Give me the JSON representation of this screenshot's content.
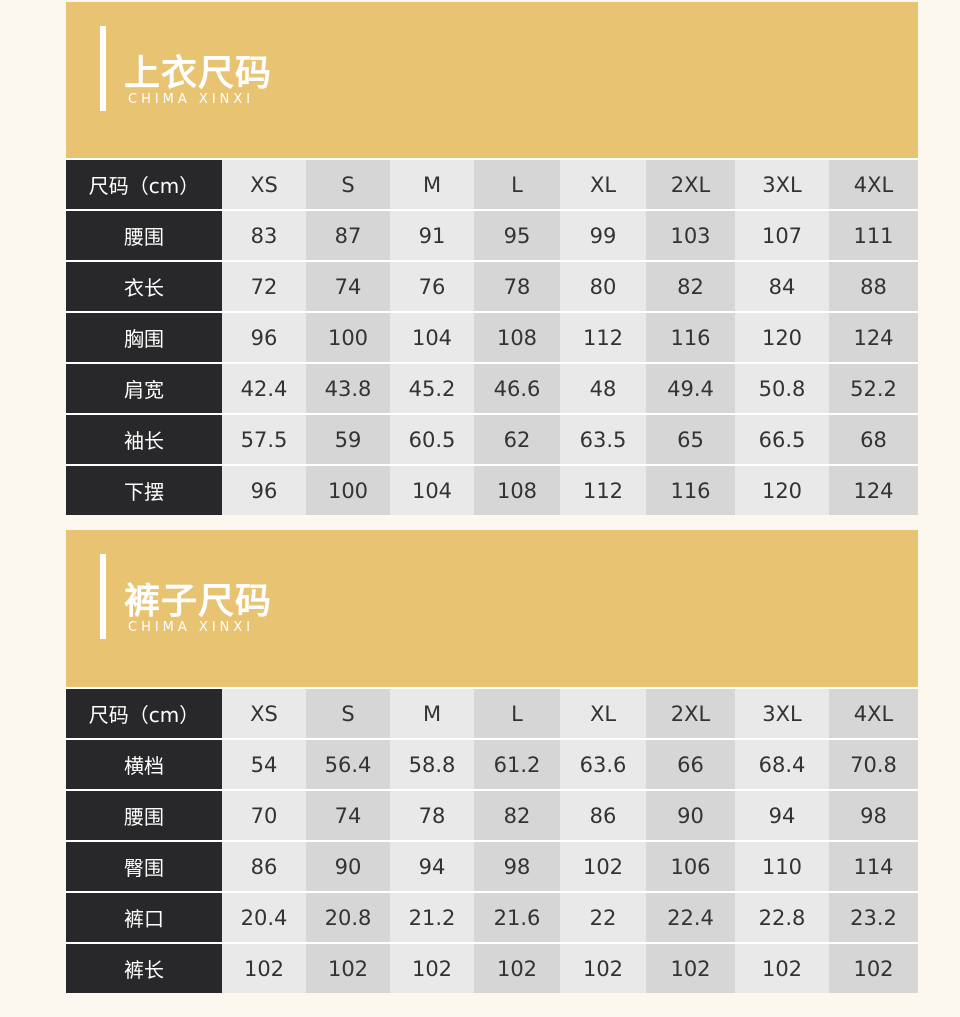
{
  "colors": {
    "header": "#e8c372",
    "label": "#28282a",
    "light": "#e9e9e9",
    "dark": "#d6d6d6"
  },
  "sections": [
    {
      "title": "上衣尺码",
      "subtitle": "CHIMA XINXI",
      "header": [
        "尺码（cm）",
        "XS",
        "S",
        "M",
        "L",
        "XL",
        "2XL",
        "3XL",
        "4XL"
      ],
      "rows": [
        [
          "腰围",
          "83",
          "87",
          "91",
          "95",
          "99",
          "103",
          "107",
          "111"
        ],
        [
          "衣长",
          "72",
          "74",
          "76",
          "78",
          "80",
          "82",
          "84",
          "88"
        ],
        [
          "胸围",
          "96",
          "100",
          "104",
          "108",
          "112",
          "116",
          "120",
          "124"
        ],
        [
          "肩宽",
          "42.4",
          "43.8",
          "45.2",
          "46.6",
          "48",
          "49.4",
          "50.8",
          "52.2"
        ],
        [
          "袖长",
          "57.5",
          "59",
          "60.5",
          "62",
          "63.5",
          "65",
          "66.5",
          "68"
        ],
        [
          "下摆",
          "96",
          "100",
          "104",
          "108",
          "112",
          "116",
          "120",
          "124"
        ]
      ]
    },
    {
      "title": "裤子尺码",
      "subtitle": "CHIMA XINXI",
      "header": [
        "尺码（cm）",
        "XS",
        "S",
        "M",
        "L",
        "XL",
        "2XL",
        "3XL",
        "4XL"
      ],
      "rows": [
        [
          "横档",
          "54",
          "56.4",
          "58.8",
          "61.2",
          "63.6",
          "66",
          "68.4",
          "70.8"
        ],
        [
          "腰围",
          "70",
          "74",
          "78",
          "82",
          "86",
          "90",
          "94",
          "98"
        ],
        [
          "臀围",
          "86",
          "90",
          "94",
          "98",
          "102",
          "106",
          "110",
          "114"
        ],
        [
          "裤口",
          "20.4",
          "20.8",
          "21.2",
          "21.6",
          "22",
          "22.4",
          "22.8",
          "23.2"
        ],
        [
          "裤长",
          "102",
          "102",
          "102",
          "102",
          "102",
          "102",
          "102",
          "102"
        ]
      ]
    }
  ]
}
